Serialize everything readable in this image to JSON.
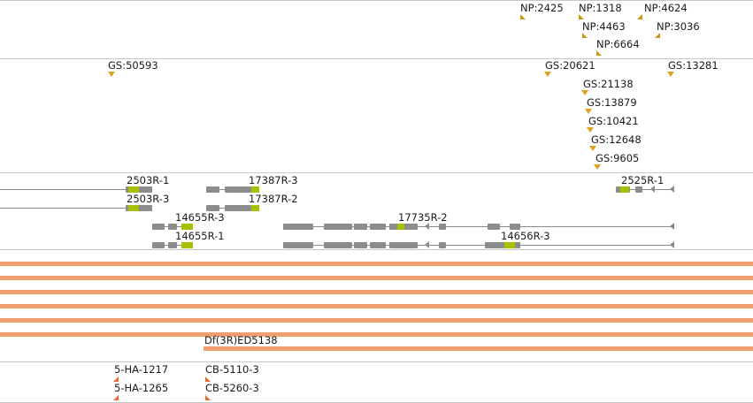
{
  "colors": {
    "np_marker": "#c89a10",
    "gs_marker": "#e0a020",
    "gene_exon": "#8c8c8c",
    "gene_cds": "#a8c000",
    "deficiency_bar": "#f0a070",
    "insertion_marker": "#e86a3a",
    "divider": "#c8c8c8"
  },
  "np_track": {
    "features": [
      "NP:2425",
      "NP:1318",
      "NP:4624",
      "NP:4463",
      "NP:3036",
      "NP:6664"
    ]
  },
  "gs_track": {
    "features": [
      "GS:50593",
      "GS:20621",
      "GS:13281",
      "GS:21138",
      "GS:13879",
      "GS:10421",
      "GS:12648",
      "GS:9605"
    ]
  },
  "gene_track": {
    "transcripts": [
      "2503R-1",
      "17387R-3",
      "2525R-1",
      "2503R-3",
      "17387R-2",
      "14655R-3",
      "17735R-2",
      "14655R-1",
      "14656R-3"
    ]
  },
  "deficiency_track": {
    "label": "Df(3R)ED5138"
  },
  "insertion_track": {
    "features": [
      "5-HA-1217",
      "CB-5110-3",
      "5-HA-1265",
      "CB-5260-3"
    ]
  }
}
